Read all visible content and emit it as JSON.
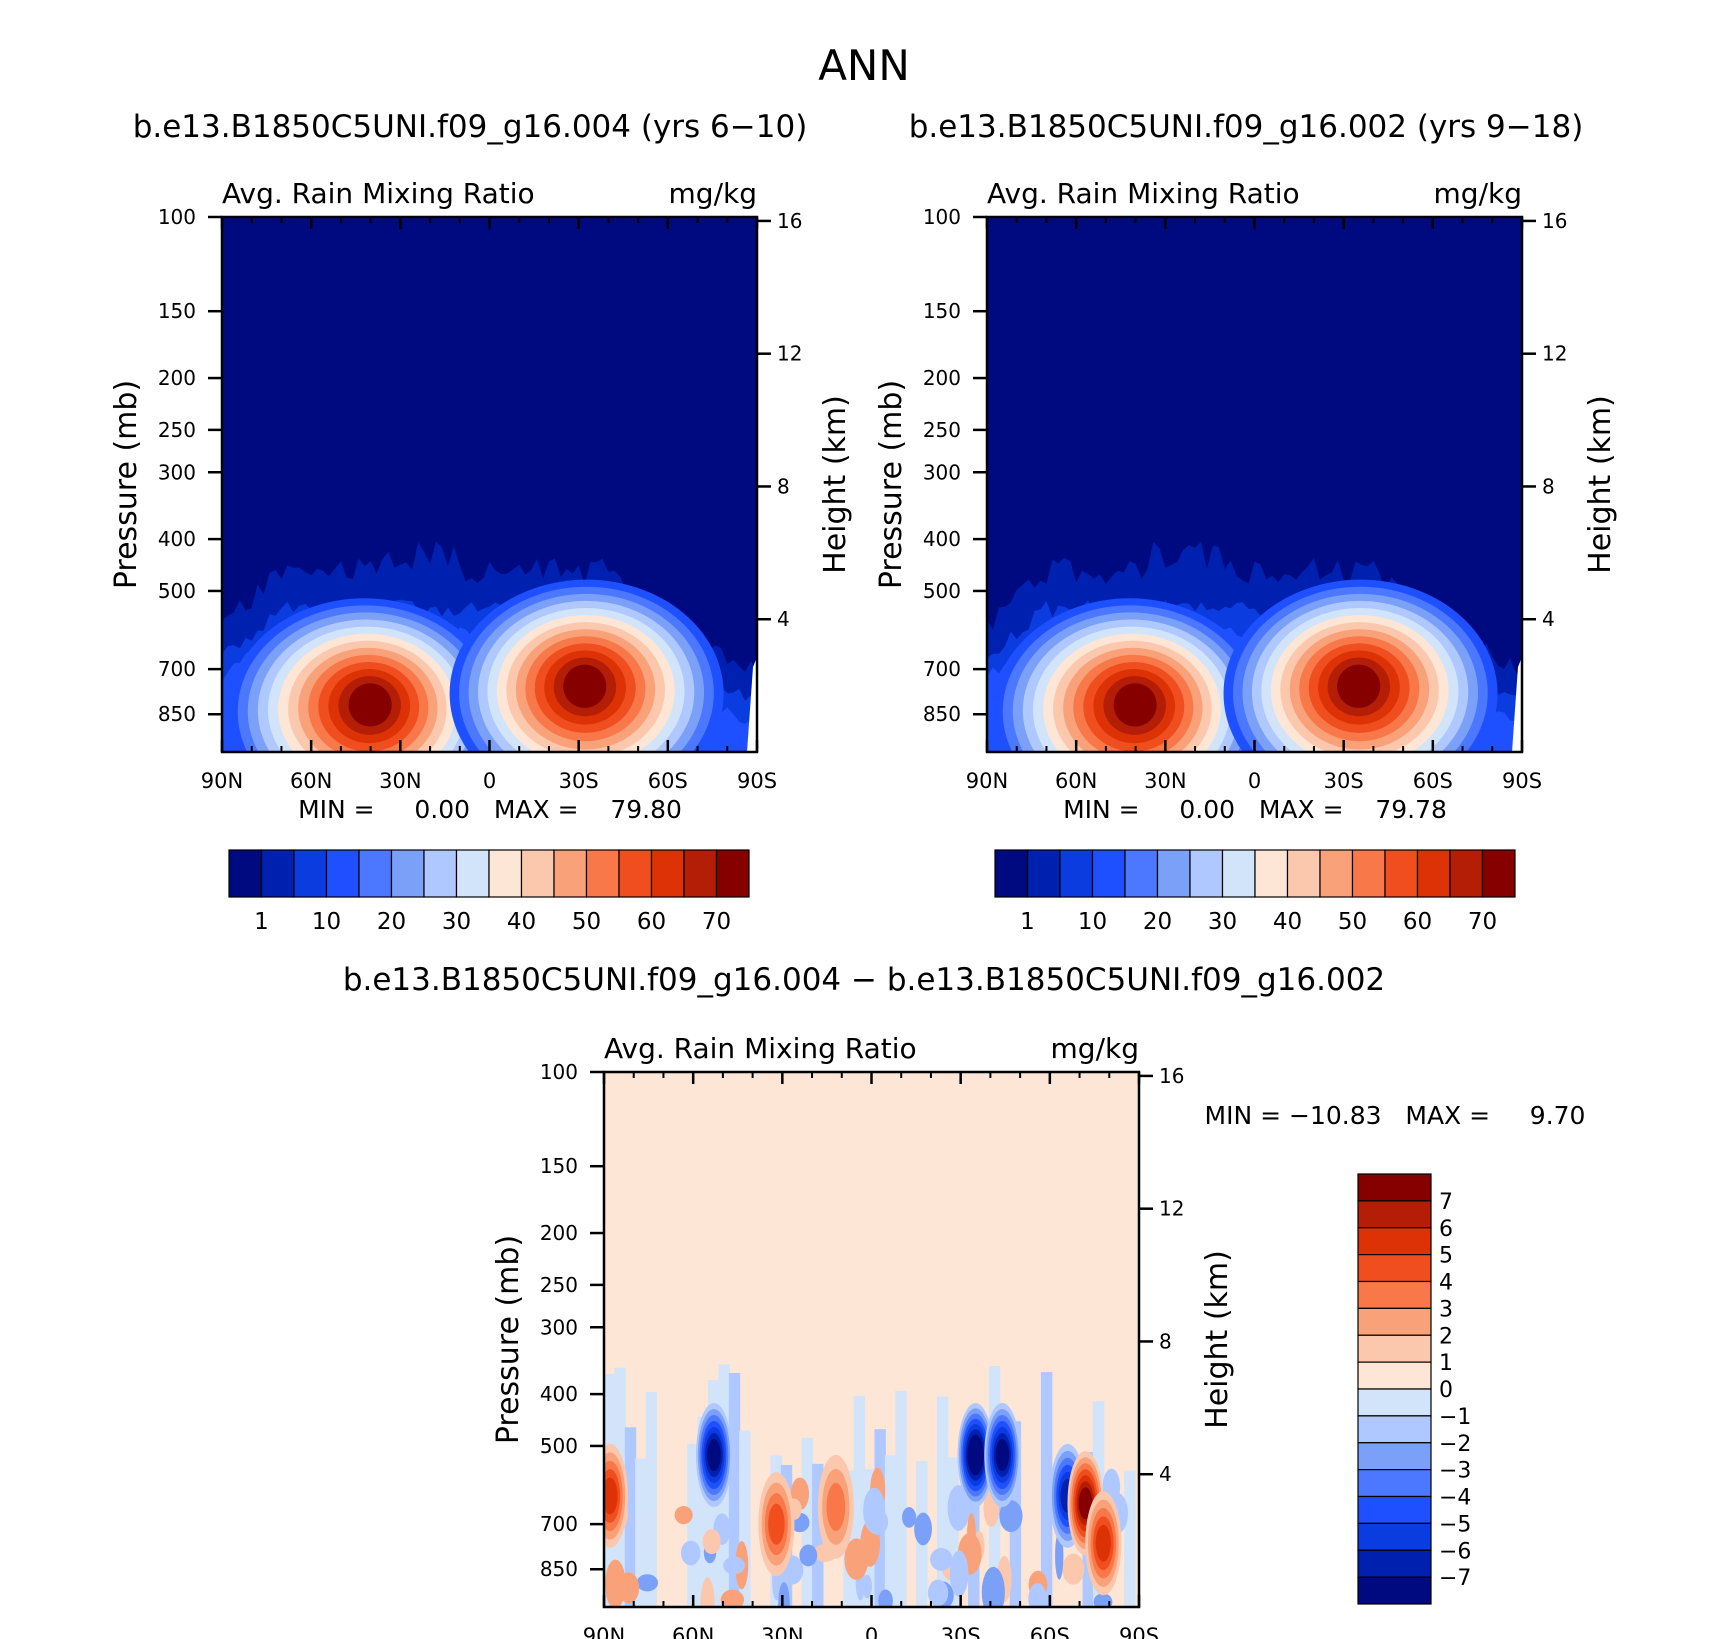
{
  "figure_title": "ANN",
  "chart_data": [
    {
      "type": "heatmap",
      "title": "b.e13.B1850C5UNI.f09_g16.004 (yrs 6−10)",
      "variable": "Avg. Rain Mixing Ratio",
      "units": "mg/kg",
      "ylabel": "Pressure (mb)",
      "ylabel2": "Height (km)",
      "xticks": [
        "90N",
        "60N",
        "30N",
        "0",
        "30S",
        "60S",
        "90S"
      ],
      "yticks": [
        100,
        150,
        200,
        250,
        300,
        400,
        500,
        700,
        850
      ],
      "ylim": [
        100,
        1000
      ],
      "y_scale": "log",
      "height_ticks": [
        4,
        8,
        12,
        16
      ],
      "stats_text": "MIN =     0.00   MAX =    79.80",
      "levels": [
        "1",
        "10",
        "20",
        "30",
        "40",
        "50",
        "60",
        "70"
      ],
      "features": [
        {
          "lat": 40,
          "pressure": 780,
          "value": 75
        },
        {
          "lat": -32,
          "pressure": 720,
          "value": 79.8
        }
      ]
    },
    {
      "type": "heatmap",
      "title": "b.e13.B1850C5UNI.f09_g16.002 (yrs 9−18)",
      "variable": "Avg. Rain Mixing Ratio",
      "units": "mg/kg",
      "ylabel": "Pressure (mb)",
      "ylabel2": "Height (km)",
      "xticks": [
        "90N",
        "60N",
        "30N",
        "0",
        "30S",
        "60S",
        "90S"
      ],
      "yticks": [
        100,
        150,
        200,
        250,
        300,
        400,
        500,
        700,
        850
      ],
      "ylim": [
        100,
        1000
      ],
      "y_scale": "log",
      "height_ticks": [
        4,
        8,
        12,
        16
      ],
      "stats_text": "MIN =     0.00   MAX =    79.78",
      "levels": [
        "1",
        "10",
        "20",
        "30",
        "40",
        "50",
        "60",
        "70"
      ],
      "features": [
        {
          "lat": 40,
          "pressure": 780,
          "value": 75
        },
        {
          "lat": -35,
          "pressure": 720,
          "value": 79.78
        }
      ]
    },
    {
      "type": "heatmap",
      "title": "b.e13.B1850C5UNI.f09_g16.004 − b.e13.B1850C5UNI.f09_g16.002",
      "variable": "Avg. Rain Mixing Ratio",
      "units": "mg/kg",
      "ylabel": "Pressure (mb)",
      "ylabel2": "Height (km)",
      "xticks": [
        "90N",
        "60N",
        "30N",
        "0",
        "30S",
        "60S",
        "90S"
      ],
      "yticks": [
        100,
        150,
        200,
        250,
        300,
        400,
        500,
        700,
        850
      ],
      "ylim": [
        100,
        1000
      ],
      "y_scale": "log",
      "height_ticks": [
        4,
        8,
        12,
        16
      ],
      "stats_text": "MIN = −10.83   MAX =     9.70",
      "levels": [
        "7",
        "6",
        "5",
        "4",
        "3",
        "2",
        "1",
        "0",
        "−1",
        "−2",
        "−3",
        "−4",
        "−5",
        "−6",
        "−7"
      ],
      "features": [
        {
          "lat": 88,
          "pressure": 620,
          "value": 5
        },
        {
          "lat": 53,
          "pressure": 520,
          "value": -7
        },
        {
          "lat": 32,
          "pressure": 700,
          "value": 4
        },
        {
          "lat": 12,
          "pressure": 650,
          "value": 3
        },
        {
          "lat": -35,
          "pressure": 520,
          "value": -8
        },
        {
          "lat": -44,
          "pressure": 520,
          "value": -7
        },
        {
          "lat": -66,
          "pressure": 620,
          "value": -6
        },
        {
          "lat": -72,
          "pressure": 640,
          "value": 7
        },
        {
          "lat": -78,
          "pressure": 760,
          "value": 5
        }
      ]
    }
  ],
  "colors": {
    "abs_palette": [
      "#000a80",
      "#0020b0",
      "#0a3ce0",
      "#1e50ff",
      "#4b78ff",
      "#7aa0f8",
      "#afc8ff",
      "#d2e4fa",
      "#fde6d6",
      "#fbc8ae",
      "#f9a27a",
      "#f8784a",
      "#f04e1e",
      "#dc3206",
      "#b41e06",
      "#870000"
    ],
    "diff_palette": [
      "#870000",
      "#b41e06",
      "#dc3206",
      "#f04e1e",
      "#f8784a",
      "#f9a27a",
      "#fbc8ae",
      "#fde6d6",
      "#d2e4fa",
      "#afc8ff",
      "#7aa0f8",
      "#4b78ff",
      "#1e50ff",
      "#0a3ce0",
      "#0020b0",
      "#000a80"
    ]
  }
}
